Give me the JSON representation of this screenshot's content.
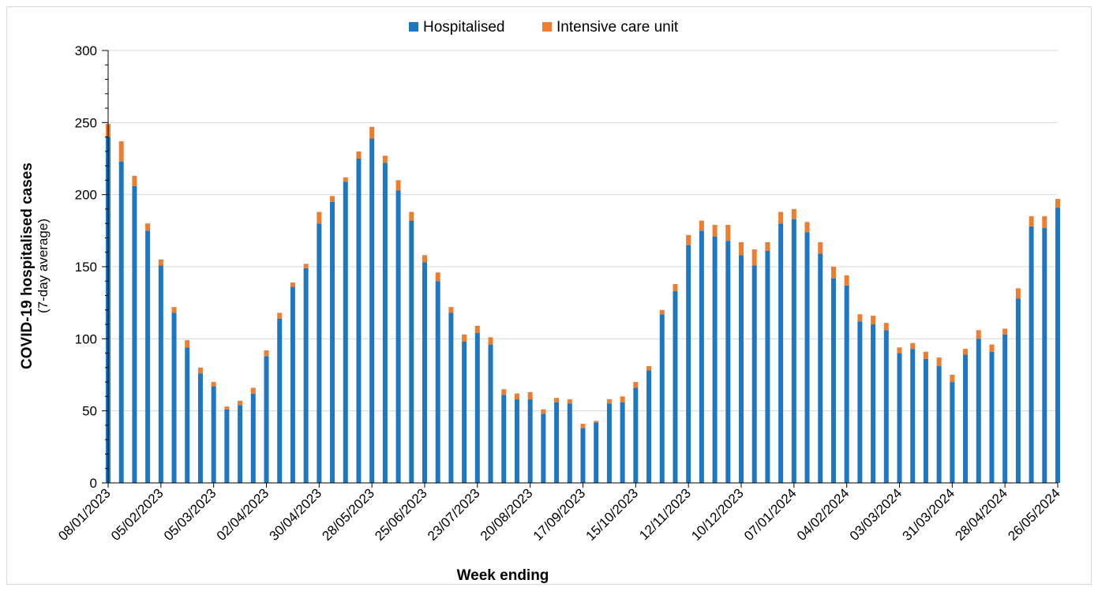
{
  "colors": {
    "hospitalised": "#1f77c4",
    "icu": "#ed7d31",
    "grid": "#d9d9d9",
    "axis": "#000000"
  },
  "legend": {
    "hospitalised": "Hospitalised",
    "icu": "Intensive care unit"
  },
  "axes": {
    "ylabel": "COVID-19 hospitalised cases",
    "ylabel_sub": "(7-day average)",
    "xlabel": "Week ending"
  },
  "chart_data": {
    "type": "bar",
    "stacked": true,
    "ylim": [
      0,
      300
    ],
    "yticks": [
      0,
      50,
      100,
      150,
      200,
      250,
      300
    ],
    "grid": true,
    "legend_position": "top-center",
    "x": [
      "08/01/2023",
      "15/01/2023",
      "22/01/2023",
      "29/01/2023",
      "05/02/2023",
      "12/02/2023",
      "19/02/2023",
      "26/02/2023",
      "05/03/2023",
      "12/03/2023",
      "19/03/2023",
      "26/03/2023",
      "02/04/2023",
      "09/04/2023",
      "16/04/2023",
      "23/04/2023",
      "30/04/2023",
      "07/05/2023",
      "14/05/2023",
      "21/05/2023",
      "28/05/2023",
      "04/06/2023",
      "11/06/2023",
      "18/06/2023",
      "25/06/2023",
      "02/07/2023",
      "09/07/2023",
      "16/07/2023",
      "23/07/2023",
      "30/07/2023",
      "06/08/2023",
      "13/08/2023",
      "20/08/2023",
      "27/08/2023",
      "03/09/2023",
      "10/09/2023",
      "17/09/2023",
      "24/09/2023",
      "01/10/2023",
      "08/10/2023",
      "15/10/2023",
      "22/10/2023",
      "29/10/2023",
      "05/11/2023",
      "12/11/2023",
      "19/11/2023",
      "26/11/2023",
      "03/12/2023",
      "10/12/2023",
      "17/12/2023",
      "24/12/2023",
      "31/12/2023",
      "07/01/2024",
      "14/01/2024",
      "21/01/2024",
      "28/01/2024",
      "04/02/2024",
      "11/02/2024",
      "18/02/2024",
      "25/02/2024",
      "03/03/2024",
      "10/03/2024",
      "17/03/2024",
      "24/03/2024",
      "31/03/2024",
      "07/04/2024",
      "14/04/2024",
      "21/04/2024",
      "28/04/2024",
      "05/05/2024",
      "12/05/2024",
      "19/05/2024",
      "26/05/2024"
    ],
    "xtick_labels": [
      "08/01/2023",
      "05/02/2023",
      "05/03/2023",
      "02/04/2023",
      "30/04/2023",
      "28/05/2023",
      "25/06/2023",
      "23/07/2023",
      "20/08/2023",
      "17/09/2023",
      "15/10/2023",
      "12/11/2023",
      "10/12/2023",
      "07/01/2024",
      "04/02/2024",
      "03/03/2024",
      "31/03/2024",
      "28/04/2024",
      "26/05/2024"
    ],
    "series": [
      {
        "name": "Hospitalised",
        "values": [
          240,
          223,
          206,
          175,
          151,
          118,
          94,
          76,
          67,
          51,
          54,
          62,
          88,
          114,
          136,
          149,
          180,
          195,
          209,
          225,
          239,
          222,
          203,
          182,
          153,
          140,
          118,
          98,
          104,
          96,
          61,
          58,
          58,
          48,
          56,
          55,
          38,
          42,
          55,
          56,
          66,
          78,
          117,
          133,
          165,
          175,
          171,
          168,
          158,
          151,
          161,
          180,
          183,
          174,
          159,
          142,
          137,
          112,
          110,
          106,
          90,
          93,
          86,
          81,
          70,
          89,
          100,
          91,
          103,
          128,
          178,
          177,
          191
        ]
      },
      {
        "name": "Intensive care unit",
        "values": [
          9,
          14,
          7,
          5,
          4,
          4,
          5,
          4,
          3,
          2,
          3,
          4,
          4,
          4,
          3,
          3,
          8,
          4,
          3,
          5,
          8,
          5,
          7,
          6,
          5,
          6,
          4,
          5,
          5,
          5,
          4,
          4,
          5,
          3,
          3,
          3,
          3,
          1,
          3,
          4,
          4,
          3,
          3,
          5,
          7,
          7,
          8,
          11,
          9,
          11,
          6,
          8,
          7,
          7,
          8,
          8,
          7,
          5,
          6,
          5,
          4,
          4,
          5,
          6,
          5,
          4,
          6,
          5,
          4,
          7,
          7,
          8,
          6
        ]
      }
    ]
  }
}
